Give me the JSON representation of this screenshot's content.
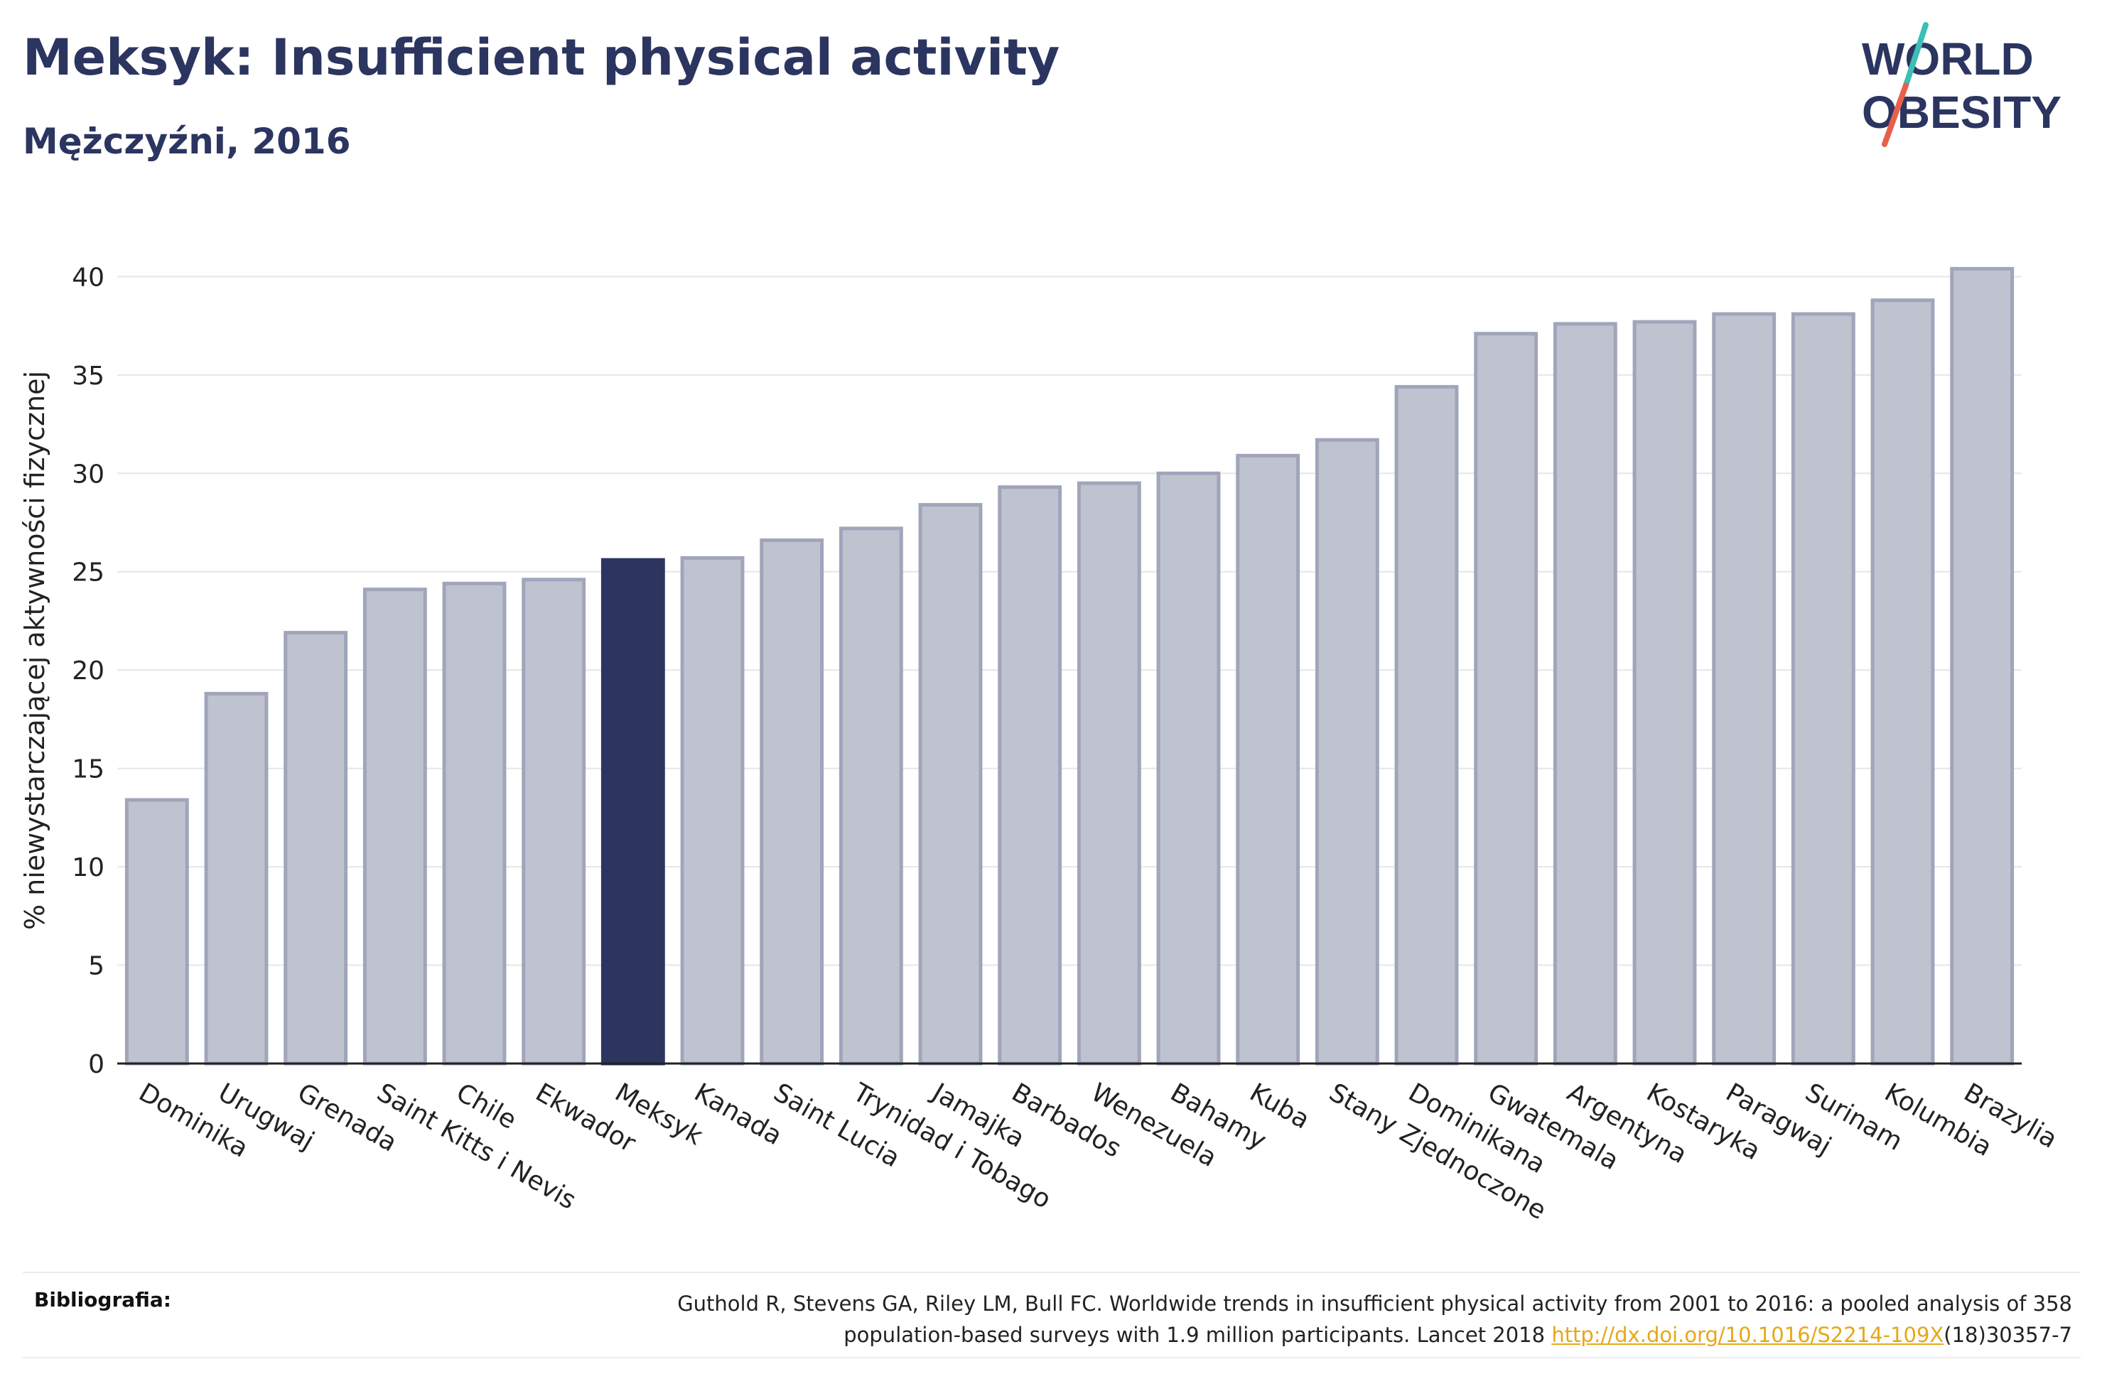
{
  "header": {
    "title": "Meksyk: Insufficient physical activity",
    "subtitle": "Mężczyźni, 2016"
  },
  "logo": {
    "line1": "WORLD",
    "line2": "OBESITY",
    "colors": {
      "text": "#2b3560",
      "slash_top": "#3bbfb7",
      "slash_bottom": "#e8604c"
    }
  },
  "chart_data": {
    "type": "bar",
    "ylabel": "% niewystarczającej aktywności fizycznej",
    "ylim": [
      0,
      42
    ],
    "yticks": [
      0,
      5,
      10,
      15,
      20,
      25,
      30,
      35,
      40
    ],
    "grid": true,
    "highlight": "Meksyk",
    "colors": {
      "bar": "#bfc2cf",
      "bar_edge": "#a0a5ba",
      "highlight": "#2b3560",
      "grid": "#e6e6e6"
    },
    "categories": [
      "Dominika",
      "Urugwaj",
      "Grenada",
      "Saint Kitts i Nevis",
      "Chile",
      "Ekwador",
      "Meksyk",
      "Kanada",
      "Saint Lucia",
      "Trynidad i Tobago",
      "Jamajka",
      "Barbados",
      "Wenezuela",
      "Bahamy",
      "Kuba",
      "Stany Zjednoczone",
      "Dominikana",
      "Gwatemala",
      "Argentyna",
      "Kostaryka",
      "Paragwaj",
      "Surinam",
      "Kolumbia",
      "Brazylia"
    ],
    "values": [
      13.4,
      18.8,
      21.9,
      24.1,
      24.4,
      24.6,
      25.6,
      25.7,
      26.6,
      27.2,
      28.4,
      29.3,
      29.5,
      30.0,
      30.9,
      31.7,
      34.4,
      37.1,
      37.6,
      37.7,
      38.1,
      38.1,
      38.8,
      40.4
    ]
  },
  "bibliography": {
    "label": "Bibliografia:",
    "text_line1": "Guthold R, Stevens GA, Riley LM, Bull FC. Worldwide trends in insufficient physical activity from 2001 to 2016: a pooled analysis of 358",
    "text_line2_before": "population-based surveys with 1.9 million participants. Lancet 2018 ",
    "link": "http://dx.doi.org/10.1016/S2214-109X",
    "text_line2_after": "(18)30357-7"
  }
}
